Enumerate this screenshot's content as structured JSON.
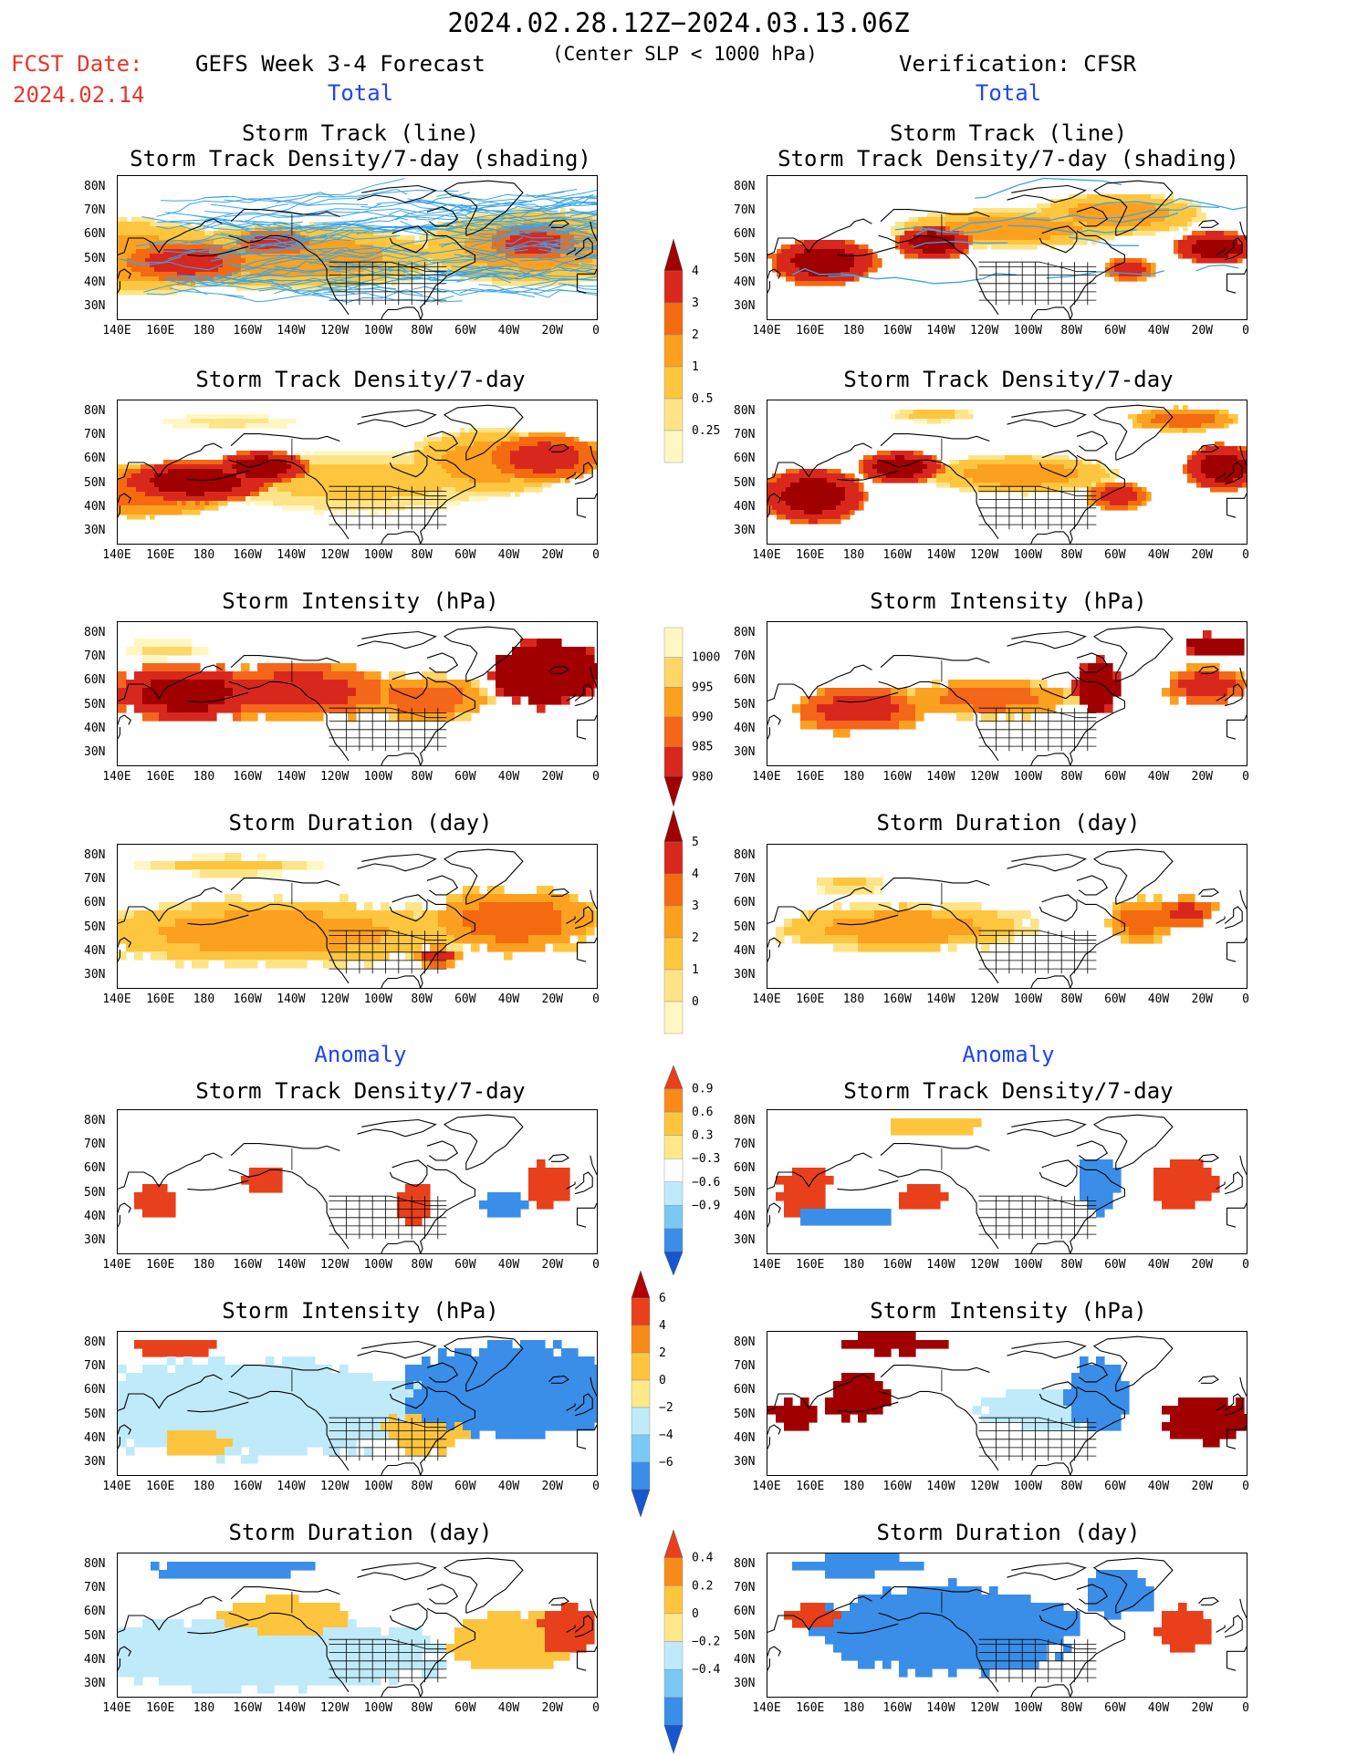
{
  "header": {
    "period": "2024.02.28.12Z−2024.03.13.06Z",
    "subtitle": "(Center SLP < 1000 hPa)",
    "fcst_label": "FCST Date:",
    "fcst_date": "2024.02.14",
    "left_title": "GEFS Week 3-4 Forecast",
    "right_title": "Verification: CFSR"
  },
  "sections": {
    "total": "Total",
    "anomaly": "Anomaly"
  },
  "panel_titles": {
    "track_line": "Storm Track (line)",
    "track_shading": "Storm Track Density/7-day (shading)",
    "density": "Storm Track Density/7-day",
    "intensity": "Storm Intensity (hPa)",
    "duration": "Storm Duration (day)"
  },
  "axes": {
    "lat_ticks": [
      "80N",
      "70N",
      "60N",
      "50N",
      "40N",
      "30N"
    ],
    "lon_ticks": [
      "140E",
      "160E",
      "180",
      "160W",
      "140W",
      "120W",
      "100W",
      "80W",
      "60W",
      "40W",
      "20W",
      "0"
    ]
  },
  "colorbars": {
    "density_total": {
      "labels": [
        "4",
        "3",
        "2",
        "1",
        "0.5",
        "0.25"
      ],
      "colors": [
        "#a00000",
        "#d8281e",
        "#f46a10",
        "#fca01f",
        "#fdc63e",
        "#fde489",
        "#fff7c2"
      ]
    },
    "intensity_total": {
      "labels": [
        "1000",
        "995",
        "990",
        "985",
        "980"
      ],
      "colors": [
        "#fff7c2",
        "#fdd66a",
        "#fca01f",
        "#f4661a",
        "#d8281e",
        "#a00000"
      ]
    },
    "duration_total": {
      "labels": [
        "5",
        "4",
        "3",
        "2",
        "1",
        "0"
      ],
      "colors": [
        "#a00000",
        "#d8281e",
        "#f46a10",
        "#fca01f",
        "#fdc63e",
        "#fde489",
        "#fff7c2"
      ]
    },
    "density_anom": {
      "labels": [
        "0.9",
        "0.6",
        "0.3",
        "−0.3",
        "−0.6",
        "−0.9"
      ],
      "colors": [
        "#e8401a",
        "#f88a1a",
        "#fdc53e",
        "#fde88a",
        "#ffffff",
        "#bfeafa",
        "#7cc8f4",
        "#3a8ee8",
        "#1656d0"
      ]
    },
    "intensity_anom": {
      "labels": [
        "6",
        "4",
        "2",
        "0",
        "−2",
        "−4",
        "−6"
      ],
      "colors": [
        "#b00000",
        "#e8401a",
        "#f88a1a",
        "#fdc53e",
        "#fde88a",
        "#bfeafa",
        "#7cc8f4",
        "#3a8ee8",
        "#1656d0"
      ]
    },
    "duration_anom": {
      "labels": [
        "0.4",
        "0.2",
        "0",
        "−0.2",
        "−0.4"
      ],
      "colors": [
        "#e8401a",
        "#f88a1a",
        "#fdc53e",
        "#fde88a",
        "#bfeafa",
        "#7cc8f4",
        "#3a8ee8",
        "#1656d0"
      ]
    }
  },
  "chart_data": [
    {
      "type": "heatmap",
      "title": "Storm Track (line) / Storm Track Density/7-day (shading)",
      "model": "GEFS Week 3-4 Forecast",
      "section": "Total",
      "xlim": [
        "140E",
        "0"
      ],
      "ylim": [
        "25N",
        "85N"
      ]
    },
    {
      "type": "heatmap",
      "title": "Storm Track (line) / Storm Track Density/7-day (shading)",
      "model": "Verification: CFSR",
      "section": "Total",
      "xlim": [
        "140E",
        "0"
      ],
      "ylim": [
        "25N",
        "85N"
      ]
    },
    {
      "type": "heatmap",
      "title": "Storm Track Density/7-day",
      "model": "GEFS Week 3-4 Forecast",
      "section": "Total",
      "levels": [
        0.25,
        0.5,
        1,
        2,
        3,
        4
      ]
    },
    {
      "type": "heatmap",
      "title": "Storm Track Density/7-day",
      "model": "Verification: CFSR",
      "section": "Total",
      "levels": [
        0.25,
        0.5,
        1,
        2,
        3,
        4
      ]
    },
    {
      "type": "heatmap",
      "title": "Storm Intensity (hPa)",
      "model": "GEFS Week 3-4 Forecast",
      "section": "Total",
      "levels": [
        980,
        985,
        990,
        995,
        1000
      ]
    },
    {
      "type": "heatmap",
      "title": "Storm Intensity (hPa)",
      "model": "Verification: CFSR",
      "section": "Total",
      "levels": [
        980,
        985,
        990,
        995,
        1000
      ]
    },
    {
      "type": "heatmap",
      "title": "Storm Duration (day)",
      "model": "GEFS Week 3-4 Forecast",
      "section": "Total",
      "levels": [
        0,
        1,
        2,
        3,
        4,
        5
      ]
    },
    {
      "type": "heatmap",
      "title": "Storm Duration (day)",
      "model": "Verification: CFSR",
      "section": "Total",
      "levels": [
        0,
        1,
        2,
        3,
        4,
        5
      ]
    },
    {
      "type": "heatmap",
      "title": "Storm Track Density/7-day",
      "model": "GEFS Week 3-4 Forecast",
      "section": "Anomaly",
      "levels": [
        -0.9,
        -0.6,
        -0.3,
        0.3,
        0.6,
        0.9
      ]
    },
    {
      "type": "heatmap",
      "title": "Storm Track Density/7-day",
      "model": "Verification: CFSR",
      "section": "Anomaly",
      "levels": [
        -0.9,
        -0.6,
        -0.3,
        0.3,
        0.6,
        0.9
      ]
    },
    {
      "type": "heatmap",
      "title": "Storm Intensity (hPa)",
      "model": "GEFS Week 3-4 Forecast",
      "section": "Anomaly",
      "levels": [
        -6,
        -4,
        -2,
        0,
        2,
        4,
        6
      ]
    },
    {
      "type": "heatmap",
      "title": "Storm Intensity (hPa)",
      "model": "Verification: CFSR",
      "section": "Anomaly",
      "levels": [
        -6,
        -4,
        -2,
        0,
        2,
        4,
        6
      ]
    },
    {
      "type": "heatmap",
      "title": "Storm Duration (day)",
      "model": "GEFS Week 3-4 Forecast",
      "section": "Anomaly",
      "levels": [
        -0.4,
        -0.2,
        0,
        0.2,
        0.4
      ]
    },
    {
      "type": "heatmap",
      "title": "Storm Duration (day)",
      "model": "Verification: CFSR",
      "section": "Anomaly",
      "levels": [
        -0.4,
        -0.2,
        0,
        0.2,
        0.4
      ]
    }
  ]
}
